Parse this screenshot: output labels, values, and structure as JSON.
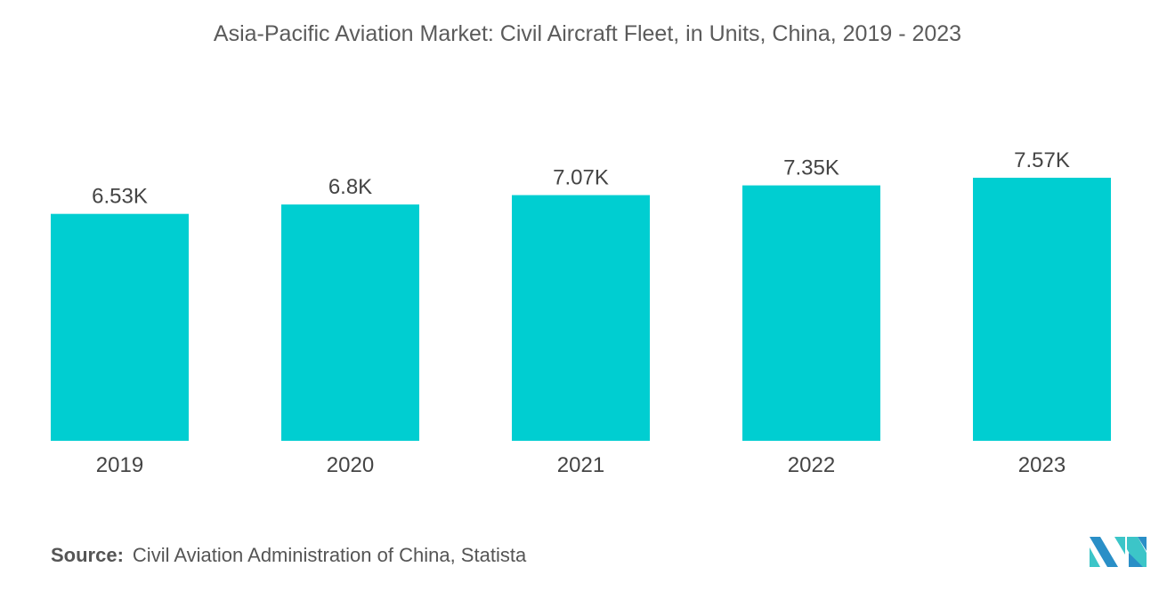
{
  "chart_data": {
    "type": "bar",
    "title": "Asia-Pacific Aviation Market: Civil Aircraft Fleet, in Units, China, 2019 - 2023",
    "categories": [
      "2019",
      "2020",
      "2021",
      "2022",
      "2023"
    ],
    "values": [
      6530,
      6800,
      7070,
      7350,
      7570
    ],
    "data_labels": [
      "6.53K",
      "6.8K",
      "7.07K",
      "7.35K",
      "7.57K"
    ],
    "xlabel": "",
    "ylabel": "",
    "ylim": [
      0,
      7570
    ],
    "grid": false,
    "bar_color": "#00CED1"
  },
  "source": {
    "label": "Source:",
    "text": "Civil Aviation Administration of China, Statista"
  },
  "logo_colors": [
    "#2a8fc7",
    "#3cc5c8"
  ]
}
